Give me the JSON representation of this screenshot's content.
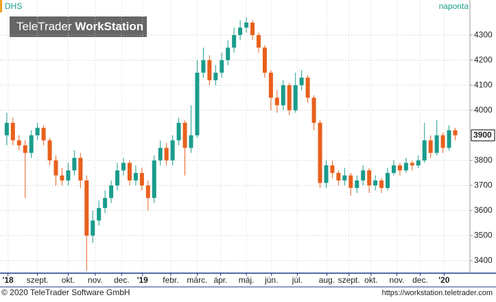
{
  "chart_data": {
    "type": "candlestick",
    "symbol": "DHS",
    "interval": "naponta",
    "logo": [
      "TeleTrader ",
      "WorkStation"
    ],
    "footer_left": "© 2020 TeleTrader Software GmbH",
    "footer_right": "https://workstation.teletrader.com",
    "up_color": "#1a9c8c",
    "down_color": "#e8601c",
    "last_price": 3900,
    "grid": true,
    "xlim": [
      -1.1,
      75.4
    ],
    "ylim": [
      3350,
      4440
    ],
    "yticks": [
      3400,
      3500,
      3600,
      3700,
      3800,
      4000,
      4100,
      4200,
      4300
    ],
    "xticks": [
      {
        "value": 0.2,
        "label": "'18"
      },
      {
        "value": 5.0,
        "label": "szept."
      },
      {
        "value": 10.0,
        "label": "okt."
      },
      {
        "value": 14.4,
        "label": "nov."
      },
      {
        "value": 18.7,
        "label": "dec."
      },
      {
        "value": 22.1,
        "label": "'19"
      },
      {
        "value": 26.7,
        "label": "febr."
      },
      {
        "value": 31.0,
        "label": "márc."
      },
      {
        "value": 34.8,
        "label": "ápr."
      },
      {
        "value": 39.0,
        "label": "máj."
      },
      {
        "value": 43.1,
        "label": "jún."
      },
      {
        "value": 47.3,
        "label": "júl."
      },
      {
        "value": 52.1,
        "label": "aug."
      },
      {
        "value": 55.7,
        "label": "szept."
      },
      {
        "value": 59.3,
        "label": "okt."
      },
      {
        "value": 63.5,
        "label": "nov."
      },
      {
        "value": 67.3,
        "label": "dec."
      },
      {
        "value": 71.2,
        "label": "'20"
      }
    ],
    "x": [
      0,
      1,
      2,
      3,
      4,
      5,
      6,
      7,
      8,
      9,
      10,
      11,
      12,
      13,
      14,
      15,
      16,
      17,
      18,
      19,
      20,
      21,
      22,
      23,
      24,
      25,
      26,
      27,
      28,
      29,
      30,
      31,
      32,
      33,
      34,
      35,
      36,
      37,
      38,
      39,
      40,
      41,
      42,
      43,
      44,
      45,
      46,
      47,
      48,
      49,
      50,
      51,
      52,
      53,
      54,
      55,
      56,
      57,
      58,
      59,
      60,
      61,
      62,
      63,
      64,
      65,
      66,
      67,
      68,
      69,
      70,
      71,
      72,
      73
    ],
    "ohlc": [
      [
        3900,
        3990,
        3860,
        3950
      ],
      [
        3950,
        3970,
        3860,
        3880
      ],
      [
        3880,
        3900,
        3840,
        3860
      ],
      [
        3860,
        3880,
        3650,
        3830
      ],
      [
        3830,
        3920,
        3810,
        3900
      ],
      [
        3900,
        3950,
        3880,
        3930
      ],
      [
        3930,
        3940,
        3860,
        3880
      ],
      [
        3880,
        3890,
        3780,
        3800
      ],
      [
        3800,
        3820,
        3700,
        3740
      ],
      [
        3740,
        3770,
        3700,
        3720
      ],
      [
        3720,
        3790,
        3700,
        3760
      ],
      [
        3760,
        3840,
        3740,
        3810
      ],
      [
        3810,
        3830,
        3690,
        3720
      ],
      [
        3720,
        3740,
        3360,
        3500
      ],
      [
        3500,
        3600,
        3470,
        3560
      ],
      [
        3560,
        3640,
        3540,
        3610
      ],
      [
        3610,
        3680,
        3590,
        3650
      ],
      [
        3650,
        3720,
        3630,
        3700
      ],
      [
        3700,
        3790,
        3680,
        3760
      ],
      [
        3760,
        3810,
        3740,
        3790
      ],
      [
        3790,
        3800,
        3700,
        3720
      ],
      [
        3720,
        3780,
        3700,
        3750
      ],
      [
        3750,
        3770,
        3680,
        3700
      ],
      [
        3700,
        3720,
        3600,
        3650
      ],
      [
        3650,
        3820,
        3630,
        3800
      ],
      [
        3800,
        3880,
        3780,
        3850
      ],
      [
        3850,
        3870,
        3780,
        3800
      ],
      [
        3800,
        3900,
        3780,
        3880
      ],
      [
        3880,
        3970,
        3860,
        3950
      ],
      [
        3950,
        3960,
        3740,
        3850
      ],
      [
        3850,
        4020,
        3830,
        3900
      ],
      [
        3900,
        4200,
        3890,
        4150
      ],
      [
        4150,
        4250,
        4130,
        4200
      ],
      [
        4200,
        4220,
        4100,
        4120
      ],
      [
        4120,
        4180,
        4100,
        4150
      ],
      [
        4150,
        4230,
        4130,
        4200
      ],
      [
        4200,
        4280,
        4180,
        4250
      ],
      [
        4250,
        4330,
        4230,
        4300
      ],
      [
        4300,
        4360,
        4280,
        4330
      ],
      [
        4330,
        4370,
        4310,
        4350
      ],
      [
        4350,
        4360,
        4280,
        4300
      ],
      [
        4300,
        4310,
        4230,
        4250
      ],
      [
        4250,
        4260,
        4130,
        4150
      ],
      [
        4150,
        4160,
        4000,
        4050
      ],
      [
        4050,
        4080,
        3990,
        4020
      ],
      [
        4020,
        4120,
        4000,
        4100
      ],
      [
        4100,
        4110,
        3980,
        4000
      ],
      [
        4000,
        4150,
        3990,
        4100
      ],
      [
        4100,
        4160,
        4080,
        4130
      ],
      [
        4130,
        4140,
        4030,
        4050
      ],
      [
        4050,
        4060,
        3920,
        3950
      ],
      [
        3950,
        3960,
        3690,
        3710
      ],
      [
        3710,
        3800,
        3690,
        3780
      ],
      [
        3780,
        3800,
        3730,
        3750
      ],
      [
        3750,
        3760,
        3700,
        3720
      ],
      [
        3720,
        3770,
        3700,
        3740
      ],
      [
        3740,
        3750,
        3660,
        3690
      ],
      [
        3690,
        3740,
        3670,
        3720
      ],
      [
        3720,
        3780,
        3700,
        3760
      ],
      [
        3760,
        3770,
        3670,
        3700
      ],
      [
        3700,
        3740,
        3680,
        3720
      ],
      [
        3720,
        3730,
        3670,
        3690
      ],
      [
        3690,
        3770,
        3680,
        3750
      ],
      [
        3750,
        3800,
        3740,
        3780
      ],
      [
        3780,
        3790,
        3740,
        3760
      ],
      [
        3760,
        3810,
        3750,
        3790
      ],
      [
        3790,
        3800,
        3760,
        3780
      ],
      [
        3780,
        3820,
        3770,
        3800
      ],
      [
        3800,
        3950,
        3790,
        3880
      ],
      [
        3880,
        3900,
        3810,
        3830
      ],
      [
        3830,
        3960,
        3820,
        3900
      ],
      [
        3900,
        3910,
        3830,
        3850
      ],
      [
        3850,
        3940,
        3840,
        3920
      ],
      [
        3920,
        3930,
        3880,
        3900
      ]
    ]
  }
}
